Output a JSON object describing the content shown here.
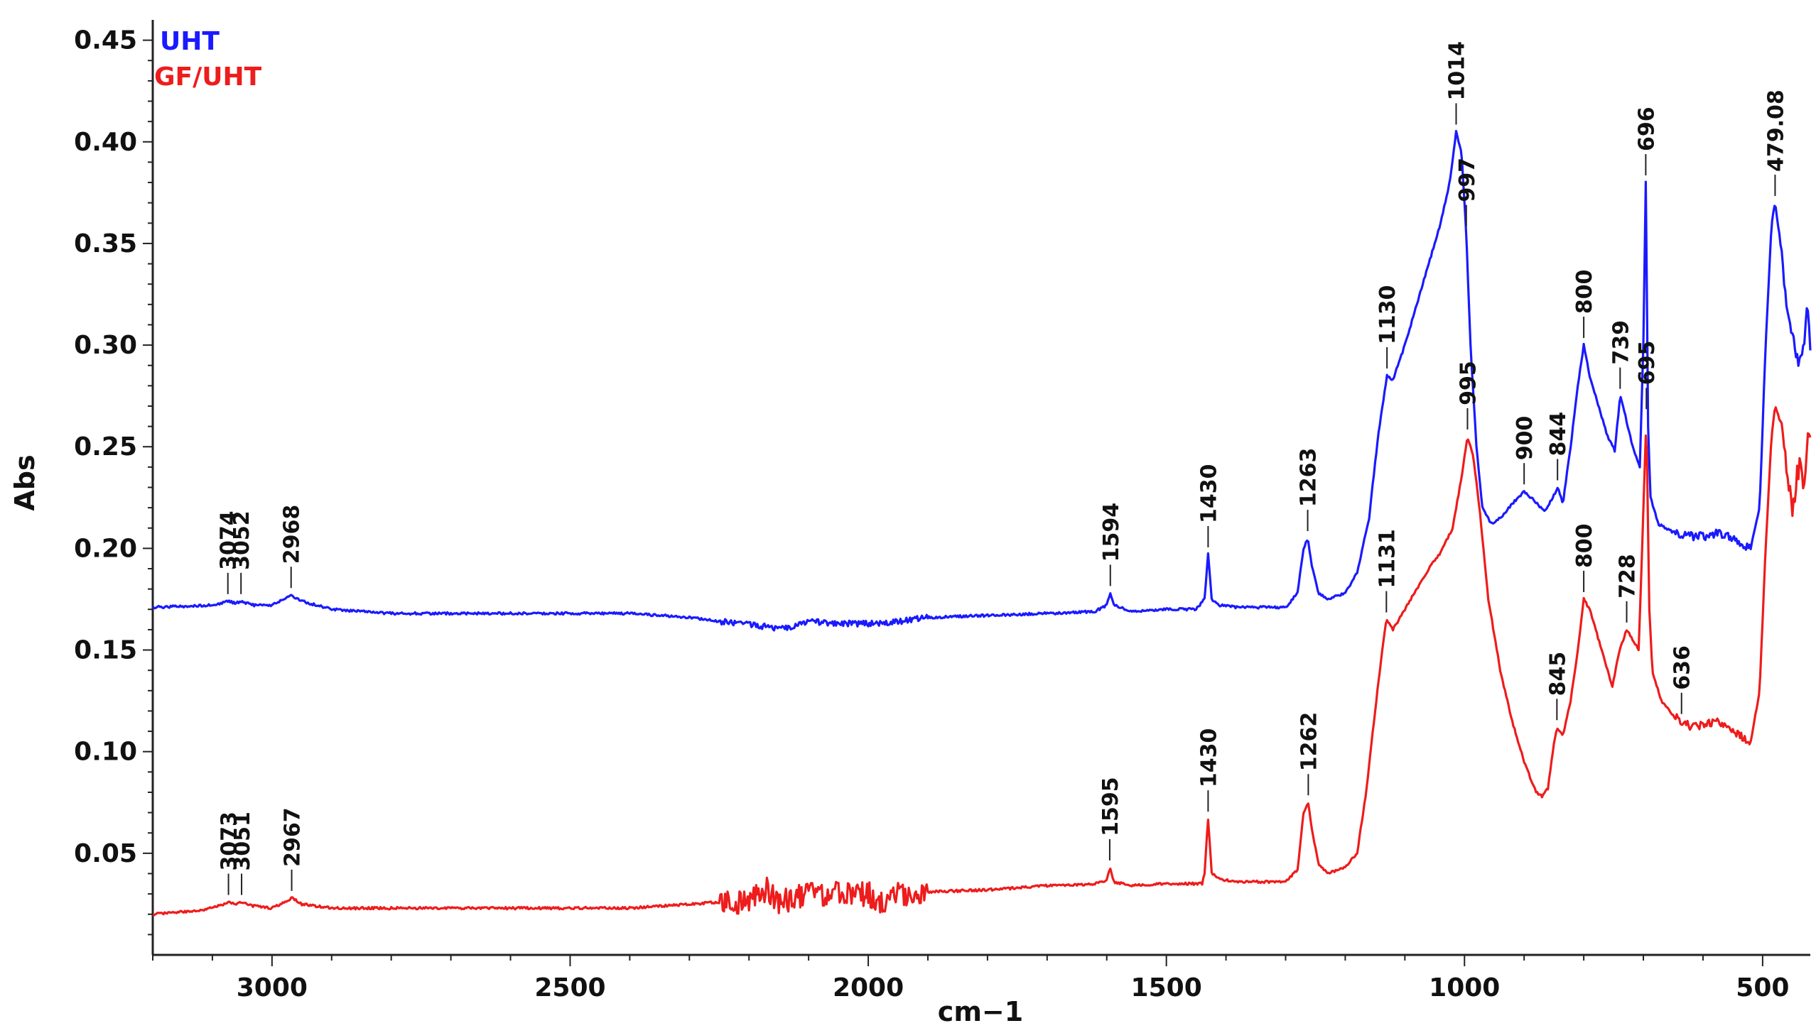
{
  "chart_data": {
    "type": "line",
    "xlabel": "cm−1",
    "ylabel": "Abs",
    "xlim": [
      3200,
      420
    ],
    "ylim": [
      0,
      0.46
    ],
    "x_reversed": true,
    "x_ticks": [
      3000,
      2500,
      2000,
      1500,
      1000,
      500
    ],
    "y_ticks": [
      0.05,
      0.1,
      0.15,
      0.2,
      0.25,
      0.3,
      0.35,
      0.4,
      0.45
    ],
    "grid": false,
    "legend_position": "top-left",
    "series": [
      {
        "name": "UHT",
        "color": "#1a1aff",
        "points": [
          [
            3200,
            0.171
          ],
          [
            3100,
            0.172
          ],
          [
            3074,
            0.174
          ],
          [
            3060,
            0.173
          ],
          [
            3052,
            0.174
          ],
          [
            3030,
            0.172
          ],
          [
            3000,
            0.172
          ],
          [
            2980,
            0.175
          ],
          [
            2968,
            0.177
          ],
          [
            2950,
            0.174
          ],
          [
            2900,
            0.17
          ],
          [
            2800,
            0.168
          ],
          [
            2600,
            0.168
          ],
          [
            2400,
            0.168
          ],
          [
            2300,
            0.166
          ],
          [
            2250,
            0.164
          ],
          [
            2200,
            0.163
          ],
          [
            2150,
            0.16
          ],
          [
            2100,
            0.164
          ],
          [
            2050,
            0.163
          ],
          [
            2000,
            0.163
          ],
          [
            1950,
            0.164
          ],
          [
            1900,
            0.166
          ],
          [
            1800,
            0.167
          ],
          [
            1700,
            0.168
          ],
          [
            1620,
            0.169
          ],
          [
            1600,
            0.172
          ],
          [
            1594,
            0.178
          ],
          [
            1588,
            0.172
          ],
          [
            1560,
            0.169
          ],
          [
            1500,
            0.17
          ],
          [
            1450,
            0.17
          ],
          [
            1436,
            0.175
          ],
          [
            1430,
            0.197
          ],
          [
            1424,
            0.175
          ],
          [
            1410,
            0.172
          ],
          [
            1380,
            0.171
          ],
          [
            1300,
            0.171
          ],
          [
            1280,
            0.178
          ],
          [
            1270,
            0.2
          ],
          [
            1263,
            0.205
          ],
          [
            1255,
            0.19
          ],
          [
            1245,
            0.178
          ],
          [
            1230,
            0.175
          ],
          [
            1200,
            0.178
          ],
          [
            1180,
            0.188
          ],
          [
            1160,
            0.215
          ],
          [
            1145,
            0.255
          ],
          [
            1130,
            0.285
          ],
          [
            1120,
            0.283
          ],
          [
            1100,
            0.3
          ],
          [
            1080,
            0.32
          ],
          [
            1060,
            0.34
          ],
          [
            1040,
            0.36
          ],
          [
            1025,
            0.38
          ],
          [
            1014,
            0.405
          ],
          [
            1005,
            0.395
          ],
          [
            997,
            0.355
          ],
          [
            990,
            0.3
          ],
          [
            980,
            0.25
          ],
          [
            970,
            0.22
          ],
          [
            955,
            0.212
          ],
          [
            940,
            0.215
          ],
          [
            920,
            0.222
          ],
          [
            900,
            0.228
          ],
          [
            885,
            0.224
          ],
          [
            865,
            0.218
          ],
          [
            852,
            0.225
          ],
          [
            844,
            0.23
          ],
          [
            835,
            0.222
          ],
          [
            822,
            0.25
          ],
          [
            810,
            0.28
          ],
          [
            800,
            0.3
          ],
          [
            790,
            0.285
          ],
          [
            775,
            0.27
          ],
          [
            760,
            0.255
          ],
          [
            748,
            0.248
          ],
          [
            739,
            0.275
          ],
          [
            730,
            0.265
          ],
          [
            718,
            0.25
          ],
          [
            706,
            0.24
          ],
          [
            700,
            0.3
          ],
          [
            696,
            0.38
          ],
          [
            692,
            0.26
          ],
          [
            688,
            0.225
          ],
          [
            675,
            0.212
          ],
          [
            650,
            0.208
          ],
          [
            620,
            0.206
          ],
          [
            590,
            0.206
          ],
          [
            575,
            0.208
          ],
          [
            560,
            0.206
          ],
          [
            540,
            0.203
          ],
          [
            520,
            0.2
          ],
          [
            505,
            0.22
          ],
          [
            495,
            0.3
          ],
          [
            485,
            0.36
          ],
          [
            479,
            0.37
          ],
          [
            470,
            0.35
          ],
          [
            460,
            0.32
          ],
          [
            450,
            0.305
          ],
          [
            440,
            0.29
          ],
          [
            435,
            0.295
          ],
          [
            430,
            0.3
          ],
          [
            425,
            0.32
          ],
          [
            420,
            0.3
          ]
        ]
      },
      {
        "name": "GF/UHT",
        "color": "#ee1c1c",
        "points": [
          [
            3200,
            0.02
          ],
          [
            3120,
            0.022
          ],
          [
            3090,
            0.024
          ],
          [
            3073,
            0.026
          ],
          [
            3060,
            0.025
          ],
          [
            3051,
            0.026
          ],
          [
            3030,
            0.024
          ],
          [
            3000,
            0.023
          ],
          [
            2980,
            0.026
          ],
          [
            2967,
            0.028
          ],
          [
            2950,
            0.025
          ],
          [
            2900,
            0.023
          ],
          [
            2800,
            0.023
          ],
          [
            2600,
            0.023
          ],
          [
            2400,
            0.023
          ],
          [
            2300,
            0.025
          ],
          [
            2250,
            0.026
          ],
          [
            2200,
            0.026
          ],
          [
            2170,
            0.032
          ],
          [
            2150,
            0.026
          ],
          [
            2100,
            0.03
          ],
          [
            2050,
            0.03
          ],
          [
            2000,
            0.03
          ],
          [
            1970,
            0.025
          ],
          [
            1950,
            0.03
          ],
          [
            1900,
            0.031
          ],
          [
            1800,
            0.032
          ],
          [
            1700,
            0.034
          ],
          [
            1620,
            0.035
          ],
          [
            1600,
            0.037
          ],
          [
            1595,
            0.043
          ],
          [
            1588,
            0.036
          ],
          [
            1560,
            0.034
          ],
          [
            1500,
            0.035
          ],
          [
            1440,
            0.035
          ],
          [
            1436,
            0.04
          ],
          [
            1430,
            0.067
          ],
          [
            1424,
            0.04
          ],
          [
            1410,
            0.037
          ],
          [
            1380,
            0.036
          ],
          [
            1300,
            0.036
          ],
          [
            1280,
            0.042
          ],
          [
            1270,
            0.07
          ],
          [
            1262,
            0.075
          ],
          [
            1255,
            0.06
          ],
          [
            1245,
            0.045
          ],
          [
            1230,
            0.04
          ],
          [
            1200,
            0.043
          ],
          [
            1180,
            0.05
          ],
          [
            1165,
            0.08
          ],
          [
            1150,
            0.12
          ],
          [
            1138,
            0.15
          ],
          [
            1131,
            0.165
          ],
          [
            1120,
            0.16
          ],
          [
            1100,
            0.17
          ],
          [
            1080,
            0.18
          ],
          [
            1060,
            0.19
          ],
          [
            1040,
            0.198
          ],
          [
            1020,
            0.21
          ],
          [
            1005,
            0.235
          ],
          [
            995,
            0.255
          ],
          [
            985,
            0.245
          ],
          [
            975,
            0.22
          ],
          [
            960,
            0.175
          ],
          [
            940,
            0.14
          ],
          [
            920,
            0.115
          ],
          [
            900,
            0.095
          ],
          [
            880,
            0.08
          ],
          [
            870,
            0.078
          ],
          [
            860,
            0.082
          ],
          [
            852,
            0.1
          ],
          [
            845,
            0.112
          ],
          [
            835,
            0.108
          ],
          [
            822,
            0.125
          ],
          [
            810,
            0.15
          ],
          [
            800,
            0.175
          ],
          [
            790,
            0.17
          ],
          [
            775,
            0.155
          ],
          [
            760,
            0.14
          ],
          [
            752,
            0.132
          ],
          [
            740,
            0.15
          ],
          [
            728,
            0.16
          ],
          [
            718,
            0.155
          ],
          [
            708,
            0.15
          ],
          [
            702,
            0.2
          ],
          [
            695,
            0.265
          ],
          [
            690,
            0.17
          ],
          [
            685,
            0.14
          ],
          [
            670,
            0.125
          ],
          [
            650,
            0.118
          ],
          [
            636,
            0.115
          ],
          [
            620,
            0.112
          ],
          [
            600,
            0.113
          ],
          [
            580,
            0.115
          ],
          [
            560,
            0.112
          ],
          [
            540,
            0.108
          ],
          [
            520,
            0.105
          ],
          [
            505,
            0.13
          ],
          [
            495,
            0.2
          ],
          [
            485,
            0.255
          ],
          [
            479,
            0.27
          ],
          [
            470,
            0.262
          ],
          [
            460,
            0.24
          ],
          [
            450,
            0.22
          ],
          [
            440,
            0.24
          ],
          [
            430,
            0.232
          ],
          [
            425,
            0.25
          ],
          [
            420,
            0.255
          ]
        ]
      }
    ],
    "annotations": [
      {
        "series": "UHT",
        "x": 3074,
        "label": "3074"
      },
      {
        "series": "UHT",
        "x": 3052,
        "label": "3052"
      },
      {
        "series": "UHT",
        "x": 2968,
        "label": "2968"
      },
      {
        "series": "UHT",
        "x": 1594,
        "label": "1594"
      },
      {
        "series": "UHT",
        "x": 1430,
        "label": "1430"
      },
      {
        "series": "UHT",
        "x": 1263,
        "label": "1263"
      },
      {
        "series": "UHT",
        "x": 1130,
        "label": "1130"
      },
      {
        "series": "UHT",
        "x": 1014,
        "label": "1014"
      },
      {
        "series": "UHT",
        "x": 997,
        "label": "997"
      },
      {
        "series": "UHT",
        "x": 900,
        "label": "900"
      },
      {
        "series": "UHT",
        "x": 844,
        "label": "844"
      },
      {
        "series": "UHT",
        "x": 800,
        "label": "800"
      },
      {
        "series": "UHT",
        "x": 739,
        "label": "739"
      },
      {
        "series": "UHT",
        "x": 696,
        "label": "696"
      },
      {
        "series": "UHT",
        "x": 479.08,
        "label": "479.08"
      },
      {
        "series": "GF/UHT",
        "x": 3073,
        "label": "3073"
      },
      {
        "series": "GF/UHT",
        "x": 3051,
        "label": "3051"
      },
      {
        "series": "GF/UHT",
        "x": 2967,
        "label": "2967"
      },
      {
        "series": "GF/UHT",
        "x": 1595,
        "label": "1595"
      },
      {
        "series": "GF/UHT",
        "x": 1430,
        "label": "1430"
      },
      {
        "series": "GF/UHT",
        "x": 1262,
        "label": "1262"
      },
      {
        "series": "GF/UHT",
        "x": 1131,
        "label": "1131"
      },
      {
        "series": "GF/UHT",
        "x": 995,
        "label": "995"
      },
      {
        "series": "GF/UHT",
        "x": 845,
        "label": "845"
      },
      {
        "series": "GF/UHT",
        "x": 800,
        "label": "800"
      },
      {
        "series": "GF/UHT",
        "x": 728,
        "label": "728"
      },
      {
        "series": "GF/UHT",
        "x": 695,
        "label": "695"
      },
      {
        "series": "GF/UHT",
        "x": 636,
        "label": "636"
      }
    ]
  }
}
